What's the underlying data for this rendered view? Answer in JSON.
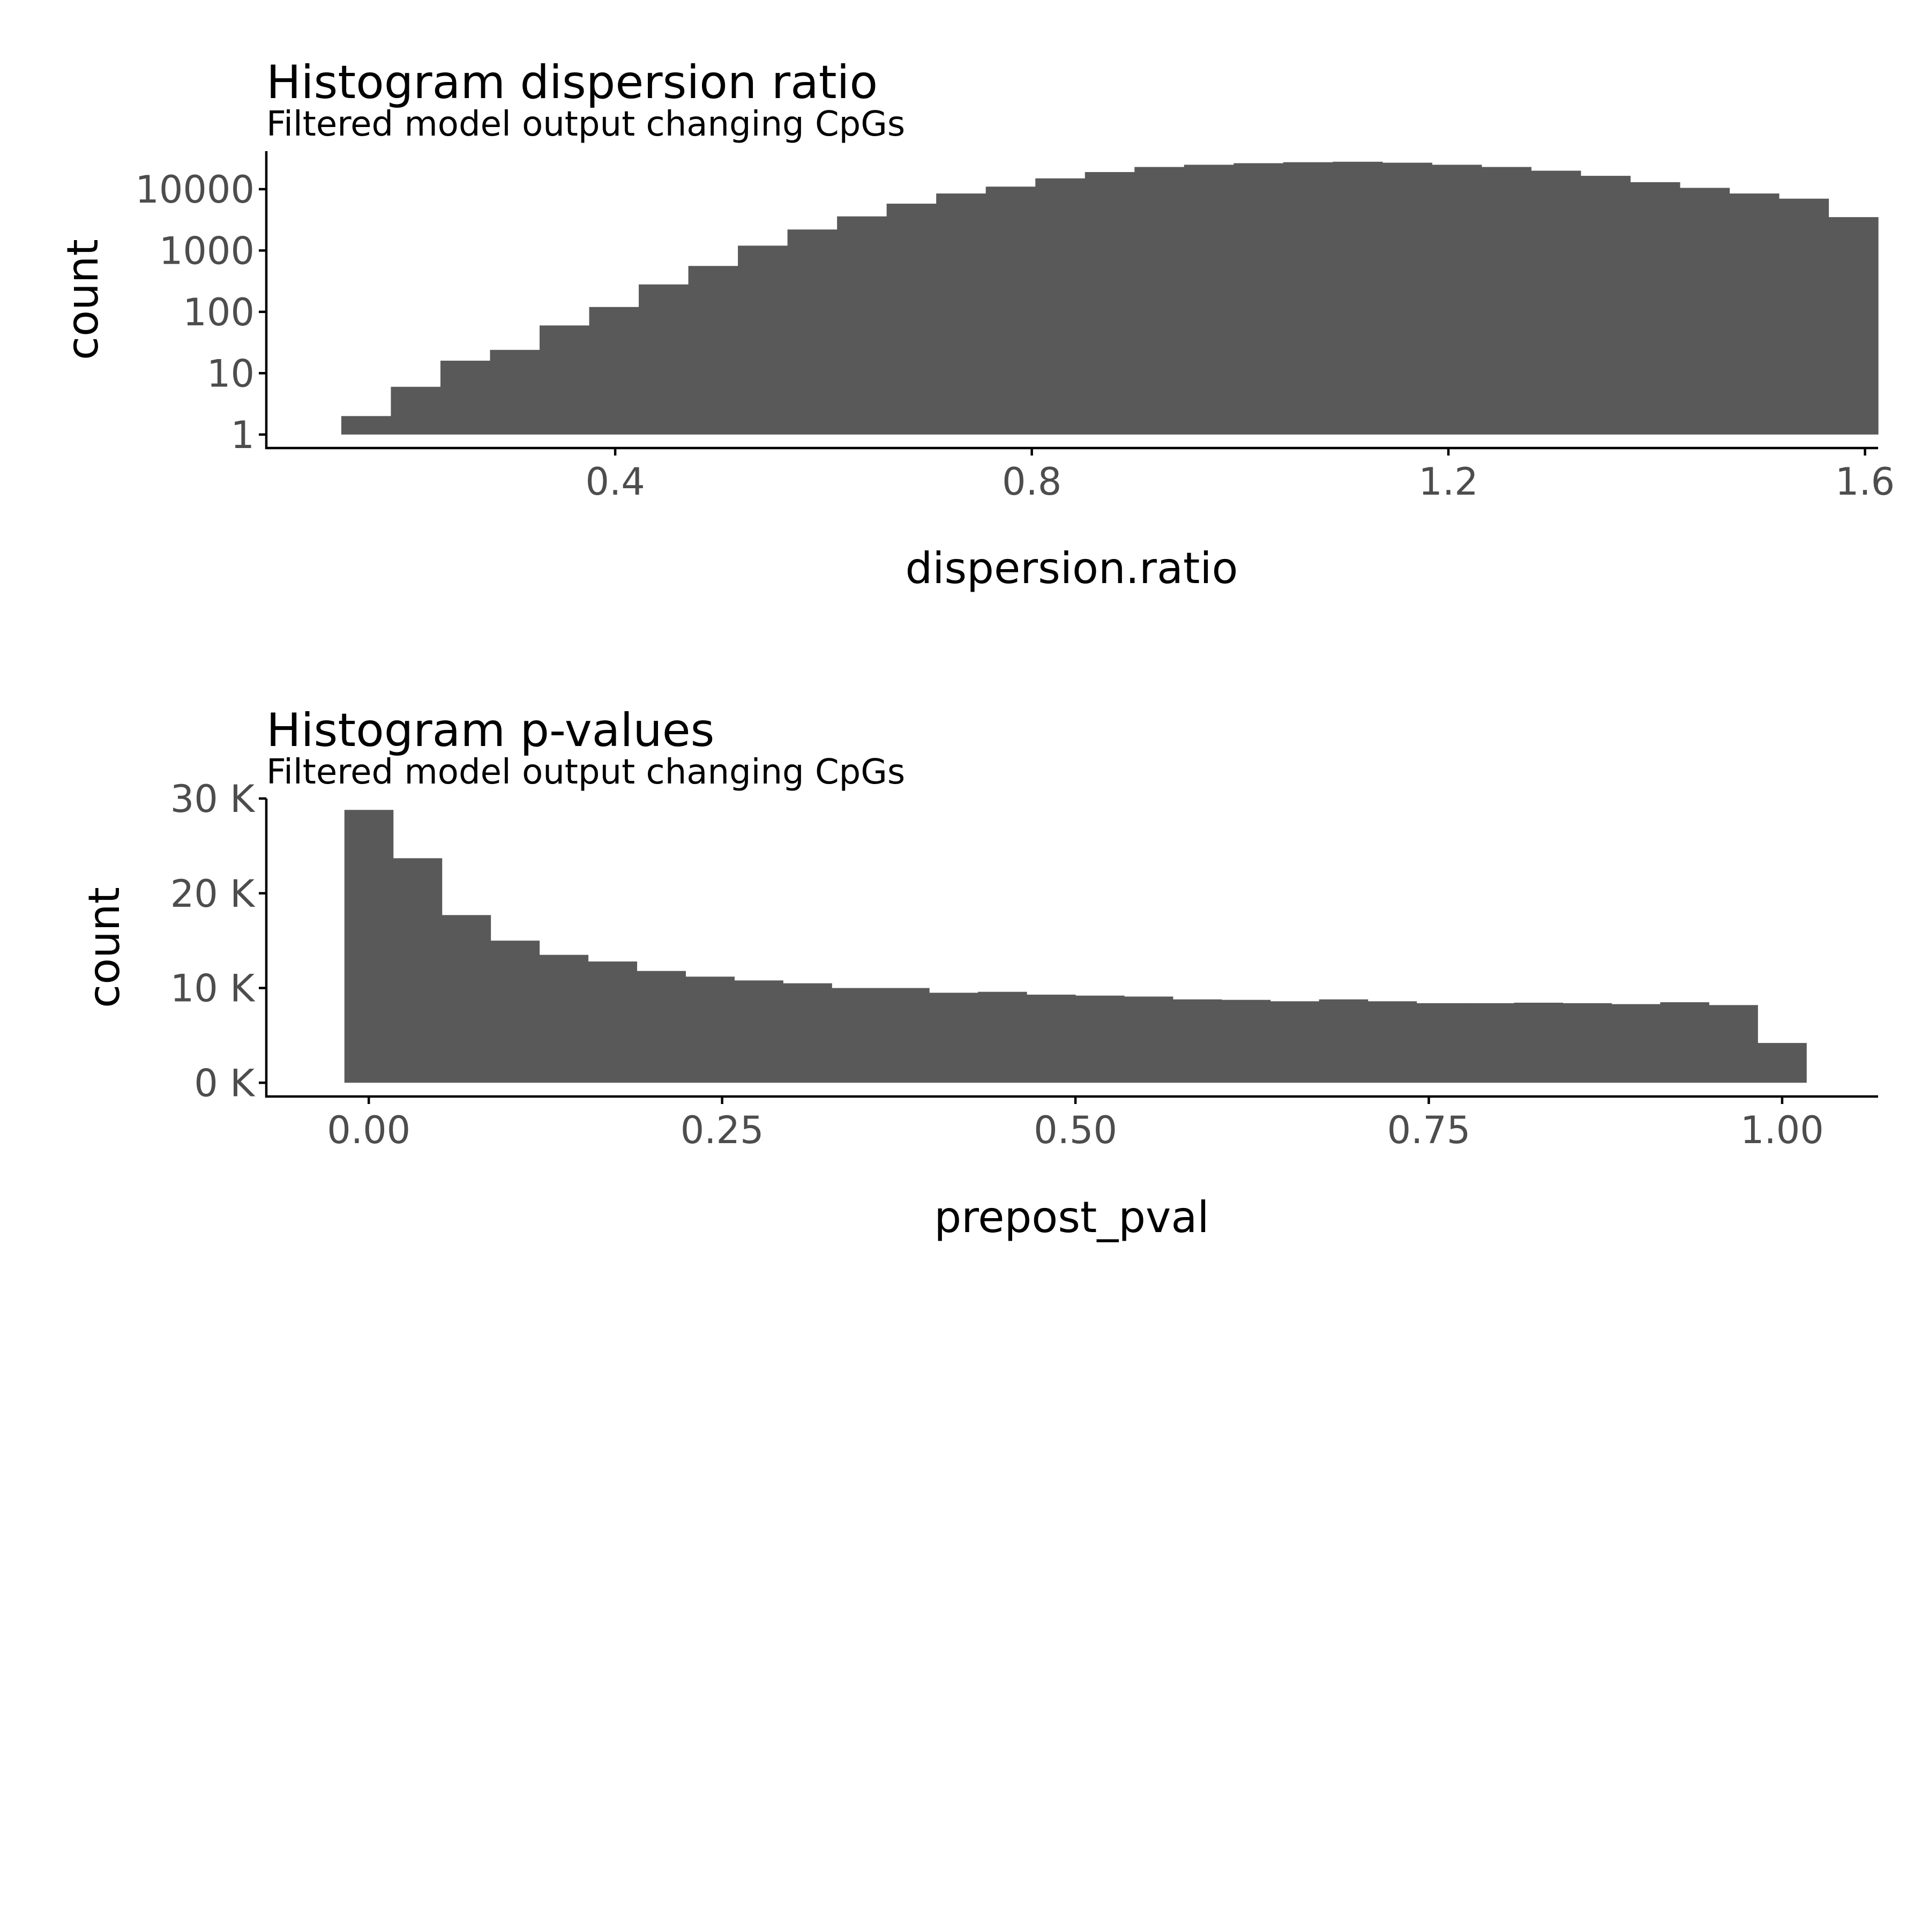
{
  "colors": {
    "bar_fill": "#595959",
    "axis_line": "#000000",
    "tick_text": "#4d4d4d",
    "background": "#ffffff"
  },
  "chart_data": [
    {
      "type": "bar",
      "title": "Histogram dispersion ratio",
      "subtitle": "Filtered model output changing CpGs",
      "xlabel": "dispersion.ratio",
      "ylabel": "count",
      "y_scale": "log10",
      "xlim": [
        0.065,
        1.61
      ],
      "ylim_log10": [
        -0.22,
        4.62
      ],
      "x_ticks": [
        0.4,
        0.8,
        1.2,
        1.6
      ],
      "x_tick_labels": [
        "0.4",
        "0.8",
        "1.2",
        "1.6"
      ],
      "y_ticks": [
        1,
        10,
        100,
        1000,
        10000
      ],
      "y_tick_labels": [
        "1",
        "10",
        "100",
        "1000",
        "10000"
      ],
      "bin_start": 0.137,
      "bin_width": 0.0476,
      "values": [
        2,
        6,
        16,
        24,
        60,
        120,
        280,
        560,
        1200,
        2200,
        3600,
        5800,
        8500,
        11000,
        15000,
        19000,
        23000,
        25000,
        26500,
        27500,
        28000,
        27000,
        25000,
        23000,
        20000,
        16500,
        13000,
        10500,
        8500,
        7000,
        3500
      ],
      "grid": false,
      "legend": "none"
    },
    {
      "type": "bar",
      "title": "Histogram p-values",
      "subtitle": "Filtered model output changing CpGs",
      "xlabel": "prepost_pval",
      "ylabel": "count",
      "y_scale": "linear",
      "xlim": [
        -0.0725,
        1.066
      ],
      "ylim": [
        -1450,
        30000
      ],
      "x_ticks": [
        0,
        0.25,
        0.5,
        0.75,
        1
      ],
      "x_tick_labels": [
        "0.00",
        "0.25",
        "0.50",
        "0.75",
        "1.00"
      ],
      "y_ticks": [
        0,
        10000,
        20000,
        30000
      ],
      "y_tick_labels": [
        "0 K",
        "10 K",
        "20 K",
        "30 K"
      ],
      "bin_start": -0.01724,
      "bin_width": 0.03448,
      "values": [
        28800,
        23700,
        17700,
        15000,
        13500,
        12800,
        11800,
        11200,
        10800,
        10500,
        10000,
        10000,
        9500,
        9600,
        9300,
        9200,
        9100,
        8800,
        8750,
        8600,
        8800,
        8600,
        8400,
        8400,
        8450,
        8400,
        8300,
        8500,
        8200,
        4200
      ],
      "grid": false,
      "legend": "none"
    }
  ]
}
